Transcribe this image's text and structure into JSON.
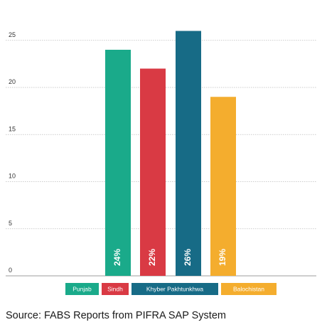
{
  "chart_data": {
    "type": "bar",
    "categories": [
      "Punjab",
      "Sindh",
      "Khyber Pakhtunkhwa",
      "Balochistan"
    ],
    "values": [
      24,
      22,
      26,
      19
    ],
    "data_labels": [
      "24%",
      "22%",
      "26%",
      "19%"
    ],
    "colors": [
      "#1aaa8a",
      "#d93a44",
      "#176b86",
      "#f4ad2e"
    ],
    "yticks": [
      0,
      5,
      10,
      15,
      20,
      25
    ],
    "ylim": [
      0,
      27
    ],
    "grid": true,
    "legend_position": "bottom-center",
    "title": "",
    "xlabel": "",
    "ylabel": ""
  },
  "source_note": "Source: FABS Reports from PIFRA SAP System"
}
